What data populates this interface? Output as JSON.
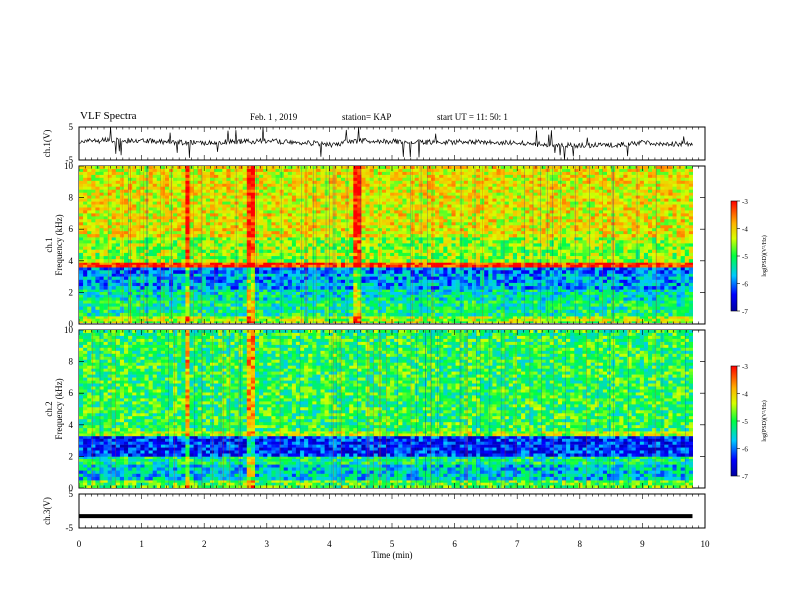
{
  "header": {
    "title": "VLF Spectra",
    "date": "Feb. 1 , 2019",
    "station": "station= KAP",
    "start_time": "start  UT =   11: 50: 1"
  },
  "chart_data": [
    {
      "type": "line",
      "panel": "ch1-waveform",
      "ylabel": "ch.1(V)",
      "ylim": [
        -5,
        5
      ],
      "yticks": [
        "5",
        "-5"
      ],
      "xlim": [
        0,
        10
      ],
      "series_shape": "noisy envelope near 0 V with frequent spikes",
      "x": [
        0.0,
        0.5,
        1.0,
        1.5,
        2.0,
        2.5,
        3.0,
        3.5,
        4.0,
        4.5,
        5.0,
        5.5,
        6.0,
        6.5,
        7.0,
        7.5,
        8.0,
        8.5,
        9.0,
        9.5,
        9.8
      ],
      "y": [
        0.5,
        1.0,
        0.8,
        0.4,
        0.2,
        0.6,
        0.7,
        0.5,
        -0.4,
        0.9,
        0.6,
        0.4,
        0.5,
        0.3,
        0.1,
        -0.4,
        -0.6,
        -0.5,
        0.2,
        -0.1,
        0.0
      ]
    },
    {
      "type": "heatmap",
      "panel": "ch1-spectrogram",
      "ylabel": "ch.1\nFrequency (kHz)",
      "ylim": [
        0,
        10
      ],
      "yticks": [
        "0",
        "2",
        "4",
        "6",
        "8",
        "10"
      ],
      "xlim": [
        0,
        10
      ],
      "colorbar": {
        "label": "log(PSD)(V²/Hz)",
        "range": [
          -7,
          -3
        ],
        "ticks": [
          "-3",
          "-4",
          "-5",
          "-6",
          "-7"
        ]
      },
      "bands_khz": [
        {
          "from": 0.0,
          "to": 0.5,
          "level": -4.5
        },
        {
          "from": 0.5,
          "to": 1.5,
          "level": -5.2
        },
        {
          "from": 1.5,
          "to": 2.2,
          "level": -5.4
        },
        {
          "from": 2.2,
          "to": 3.2,
          "level": -5.8
        },
        {
          "from": 3.2,
          "to": 3.6,
          "level": -6.0
        },
        {
          "from": 3.6,
          "to": 3.9,
          "level": -3.2
        },
        {
          "from": 3.9,
          "to": 5.5,
          "level": -4.6
        },
        {
          "from": 5.5,
          "to": 10.0,
          "level": -4.2
        }
      ],
      "vertical_bursts_min": [
        1.7,
        2.7,
        4.4
      ]
    },
    {
      "type": "heatmap",
      "panel": "ch2-spectrogram",
      "ylabel": "ch.2\nFrequency (kHz)",
      "ylim": [
        0,
        10
      ],
      "yticks": [
        "0",
        "2",
        "4",
        "6",
        "8",
        "10"
      ],
      "xlim": [
        0,
        10
      ],
      "colorbar": {
        "label": "log(PSD)(V²/Hz)",
        "range": [
          -7,
          -3
        ],
        "ticks": [
          "-3",
          "-4",
          "-5",
          "-6",
          "-7"
        ]
      },
      "bands_khz": [
        {
          "from": 0.0,
          "to": 0.5,
          "level": -4.8
        },
        {
          "from": 0.5,
          "to": 1.5,
          "level": -5.6
        },
        {
          "from": 1.5,
          "to": 2.0,
          "level": -5.2
        },
        {
          "from": 2.0,
          "to": 3.3,
          "level": -6.3
        },
        {
          "from": 3.3,
          "to": 3.6,
          "level": -4.4
        },
        {
          "from": 3.6,
          "to": 10.0,
          "level": -5.0
        }
      ],
      "vertical_bursts_min": [
        1.7,
        2.7
      ]
    },
    {
      "type": "line",
      "panel": "ch3-waveform",
      "ylabel": "ch.3(V)",
      "ylim": [
        -5,
        5
      ],
      "yticks": [
        "5",
        "-5"
      ],
      "xlim": [
        0,
        10
      ],
      "xlabel": "Time (min)",
      "xticks": [
        "0",
        "1",
        "2",
        "3",
        "4",
        "5",
        "6",
        "7",
        "8",
        "9",
        "10"
      ],
      "x": [
        0.0,
        9.8
      ],
      "y": [
        -1.5,
        -1.5
      ]
    }
  ]
}
